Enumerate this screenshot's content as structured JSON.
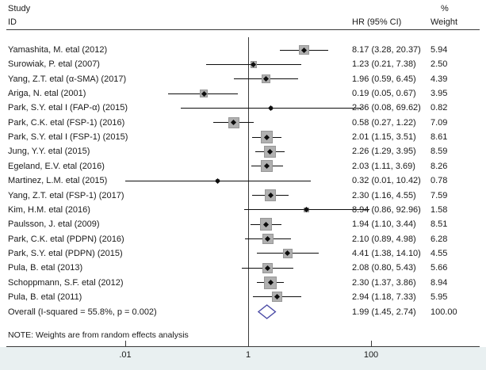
{
  "header": {
    "col_study_line1": "Study",
    "col_study_line2": "ID",
    "col_pct": "%",
    "col_hr": "HR (95% CI)",
    "col_weight": "Weight"
  },
  "note": "NOTE: Weights are from random effects analysis",
  "colors": {
    "text": "#1a1a1a",
    "rule_line": "#3a3a3a",
    "weight_square": "#b0b0b0",
    "weight_square_border": "#979797",
    "point_marker": "#0d0d0d",
    "overall_diamond": "#4a4aa5",
    "axis_band": "#e9f0f1"
  },
  "chart_data": {
    "type": "forest",
    "title": "",
    "x_scale": "log10",
    "x_ticks": [
      {
        "value": 0.01,
        "label": ".01"
      },
      {
        "value": 1,
        "label": "1"
      },
      {
        "value": 100,
        "label": "100"
      }
    ],
    "reference_line_value": 1,
    "columns": [
      "Study ID",
      "HR (95% CI)",
      "% Weight"
    ],
    "studies": [
      {
        "label": "Yamashita, M. etal (2012)",
        "hr": 8.17,
        "lo": 3.28,
        "hi": 20.37,
        "ci_text": "8.17 (3.28, 20.37)",
        "weight": 5.94,
        "weight_text": "5.94"
      },
      {
        "label": "Surowiak, P. etal (2007)",
        "hr": 1.23,
        "lo": 0.21,
        "hi": 7.38,
        "ci_text": "1.23 (0.21, 7.38)",
        "weight": 2.5,
        "weight_text": "2.50"
      },
      {
        "label": "Yang, Z.T. etal (α-SMA) (2017)",
        "hr": 1.96,
        "lo": 0.59,
        "hi": 6.45,
        "ci_text": "1.96 (0.59, 6.45)",
        "weight": 4.39,
        "weight_text": "4.39"
      },
      {
        "label": "Ariga, N. etal (2001)",
        "hr": 0.19,
        "lo": 0.05,
        "hi": 0.67,
        "ci_text": "0.19 (0.05, 0.67)",
        "weight": 3.95,
        "weight_text": "3.95"
      },
      {
        "label": "Park, S.Y. etal I (FAP-α) (2015)",
        "hr": 2.36,
        "lo": 0.08,
        "hi": 69.62,
        "ci_text": "2.36 (0.08, 69.62)",
        "weight": 0.82,
        "weight_text": "0.82"
      },
      {
        "label": "Park, C.K. etal (FSP-1) (2016)",
        "hr": 0.58,
        "lo": 0.27,
        "hi": 1.22,
        "ci_text": "0.58 (0.27, 1.22)",
        "weight": 7.09,
        "weight_text": "7.09"
      },
      {
        "label": "Park, S.Y. etal I (FSP-1) (2015)",
        "hr": 2.01,
        "lo": 1.15,
        "hi": 3.51,
        "ci_text": "2.01 (1.15, 3.51)",
        "weight": 8.61,
        "weight_text": "8.61"
      },
      {
        "label": "Jung, Y.Y. etal (2015)",
        "hr": 2.26,
        "lo": 1.29,
        "hi": 3.95,
        "ci_text": "2.26 (1.29, 3.95)",
        "weight": 8.59,
        "weight_text": "8.59"
      },
      {
        "label": "Egeland, E.V. etal (2016)",
        "hr": 2.03,
        "lo": 1.11,
        "hi": 3.69,
        "ci_text": "2.03 (1.11, 3.69)",
        "weight": 8.26,
        "weight_text": "8.26"
      },
      {
        "label": "Martinez, L.M. etal (2015)",
        "hr": 0.32,
        "lo": 0.01,
        "hi": 10.42,
        "ci_text": "0.32 (0.01, 10.42)",
        "weight": 0.78,
        "weight_text": "0.78"
      },
      {
        "label": "Yang, Z.T. etal (FSP-1) (2017)",
        "hr": 2.3,
        "lo": 1.16,
        "hi": 4.55,
        "ci_text": "2.30 (1.16, 4.55)",
        "weight": 7.59,
        "weight_text": "7.59"
      },
      {
        "label": "Kim, H.M. etal (2016)",
        "hr": 8.94,
        "lo": 0.86,
        "hi": 92.96,
        "ci_text": "8.94 (0.86, 92.96)",
        "weight": 1.58,
        "weight_text": "1.58"
      },
      {
        "label": "Paulsson, J. etal (2009)",
        "hr": 1.94,
        "lo": 1.1,
        "hi": 3.44,
        "ci_text": "1.94 (1.10, 3.44)",
        "weight": 8.51,
        "weight_text": "8.51"
      },
      {
        "label": "Park, C.K. etal (PDPN) (2016)",
        "hr": 2.1,
        "lo": 0.89,
        "hi": 4.98,
        "ci_text": "2.10 (0.89, 4.98)",
        "weight": 6.28,
        "weight_text": "6.28"
      },
      {
        "label": "Park, S.Y. etal (PDPN) (2015)",
        "hr": 4.41,
        "lo": 1.38,
        "hi": 14.1,
        "ci_text": "4.41 (1.38, 14.10)",
        "weight": 4.55,
        "weight_text": "4.55"
      },
      {
        "label": "Pula, B. etal (2013)",
        "hr": 2.08,
        "lo": 0.8,
        "hi": 5.43,
        "ci_text": "2.08 (0.80, 5.43)",
        "weight": 5.66,
        "weight_text": "5.66"
      },
      {
        "label": "Schoppmann, S.F. etal (2012)",
        "hr": 2.3,
        "lo": 1.37,
        "hi": 3.86,
        "ci_text": "2.30 (1.37, 3.86)",
        "weight": 8.94,
        "weight_text": "8.94"
      },
      {
        "label": "Pula, B. etal (2011)",
        "hr": 2.94,
        "lo": 1.18,
        "hi": 7.33,
        "ci_text": "2.94 (1.18, 7.33)",
        "weight": 5.95,
        "weight_text": "5.95"
      }
    ],
    "overall": {
      "label": "Overall  (I-squared = 55.8%, p = 0.002)",
      "hr": 1.99,
      "lo": 1.45,
      "hi": 2.74,
      "ci_text": "1.99 (1.45, 2.74)",
      "weight_text": "100.00"
    }
  }
}
